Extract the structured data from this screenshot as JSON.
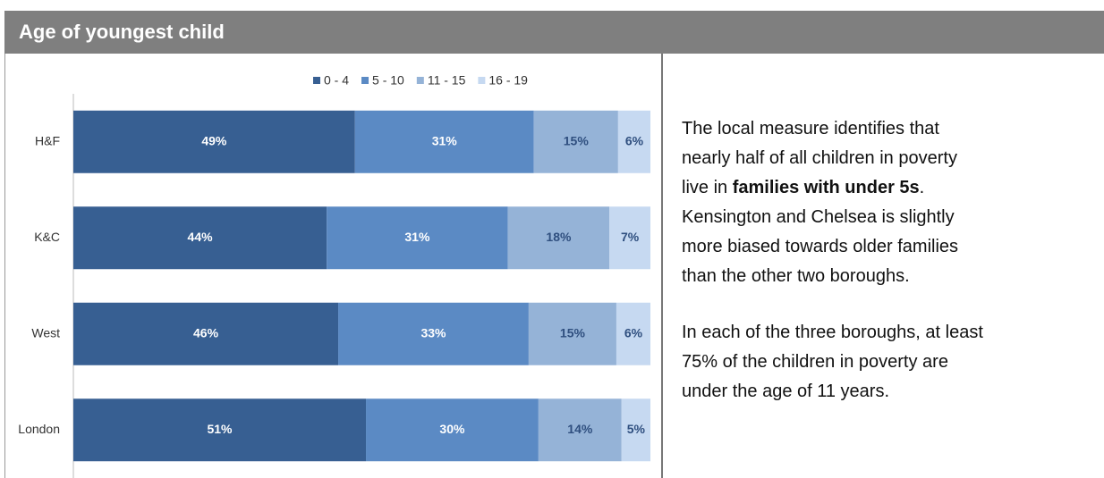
{
  "header": {
    "title": "Age of youngest child"
  },
  "chart_data": {
    "type": "hbar_stacked",
    "categories": [
      "H&F",
      "K&C",
      "West",
      "London"
    ],
    "xlim": [
      0,
      100
    ],
    "series": [
      {
        "name": "0 - 4",
        "color": "#375f92",
        "label_color": "#ffffff",
        "values": [
          48.8,
          43.9,
          45.9,
          50.7
        ],
        "value_labels": [
          "49%",
          "44%",
          "46%",
          "51%"
        ]
      },
      {
        "name": "5 - 10",
        "color": "#5b8ac4",
        "label_color": "#ffffff",
        "values": [
          31.0,
          31.4,
          33.0,
          29.9
        ],
        "value_labels": [
          "31%",
          "31%",
          "33%",
          "30%"
        ]
      },
      {
        "name": "11 - 15",
        "color": "#95b3d7",
        "label_color": "#2f4f7f",
        "values": [
          14.6,
          17.6,
          15.2,
          14.4
        ],
        "value_labels": [
          "15%",
          "18%",
          "15%",
          "14%"
        ]
      },
      {
        "name": "16 - 19",
        "color": "#c6d9f1",
        "label_color": "#2f4f7f",
        "values": [
          5.6,
          7.1,
          5.9,
          5.0
        ],
        "value_labels": [
          "6%",
          "7%",
          "6%",
          "5%"
        ]
      }
    ]
  },
  "text": {
    "paragraphs": [
      [
        [
          {
            "text": "The local measure identifies that"
          }
        ],
        [
          {
            "text": "nearly half of all children in poverty"
          }
        ],
        [
          {
            "text": "live in "
          },
          {
            "text": "families with under 5s",
            "bold": true
          },
          {
            "text": "."
          }
        ],
        [
          {
            "text": "Kensington and Chelsea is slightly"
          }
        ],
        [
          {
            "text": "more biased towards older families"
          }
        ],
        [
          {
            "text": "than the other two boroughs."
          }
        ]
      ],
      [
        [
          {
            "text": "In each of the three boroughs, at least"
          }
        ],
        [
          {
            "text": "75% of the children in poverty are"
          }
        ],
        [
          {
            "text": "under the age of 11 years."
          }
        ]
      ]
    ]
  }
}
